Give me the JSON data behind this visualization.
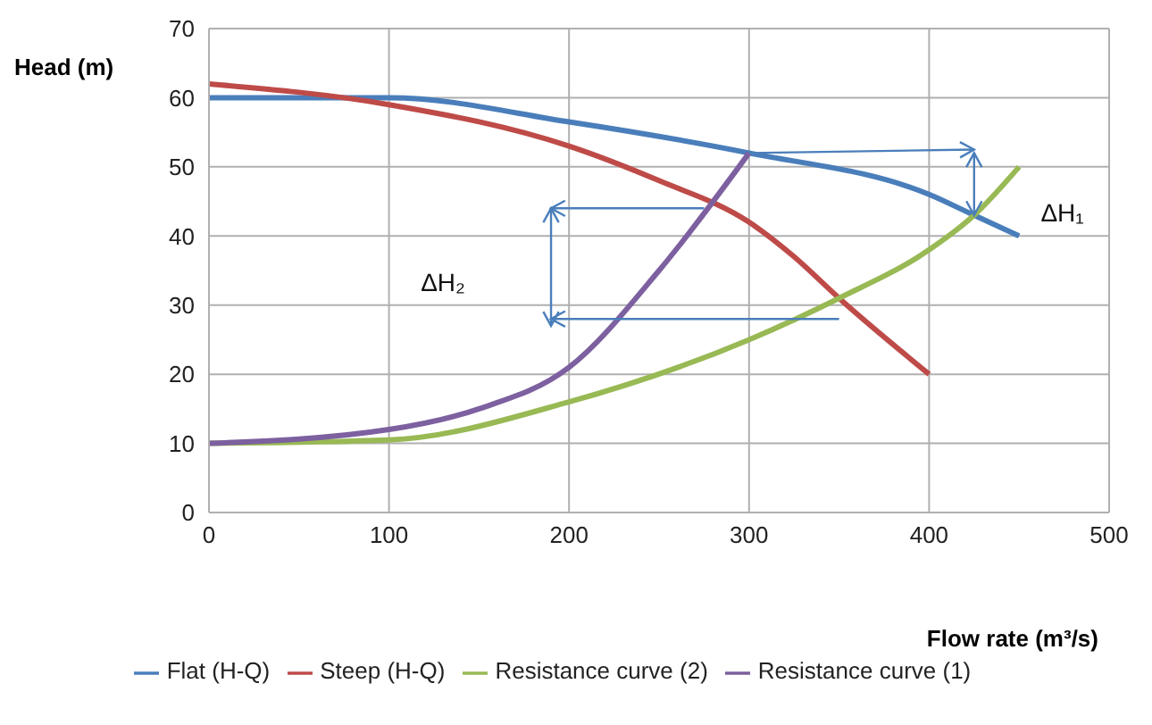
{
  "chart_data": {
    "type": "line",
    "xlabel": "Flow rate (m³/s)",
    "ylabel": "Head (m)",
    "xlim": [
      0,
      500
    ],
    "xticks": [
      0,
      100,
      200,
      300,
      400,
      500
    ],
    "ylim": [
      0,
      70
    ],
    "yticks": [
      0,
      10,
      20,
      30,
      40,
      50,
      60,
      70
    ],
    "grid": true,
    "legend": "bottom",
    "marker": "none",
    "line_style": "solid",
    "series": [
      {
        "name": "Flat (H-Q)",
        "color": "#4a7ebb",
        "x": [
          0,
          100,
          200,
          300,
          400,
          425,
          450
        ],
        "values": [
          60,
          60,
          56.5,
          52,
          46,
          43,
          40
        ]
      },
      {
        "name": "Steep (H-Q)",
        "color": "#be4b48",
        "x": [
          0,
          100,
          200,
          250,
          300,
          325,
          350,
          400
        ],
        "values": [
          62,
          59,
          53,
          48,
          42,
          37,
          31,
          20
        ]
      },
      {
        "name": "Resistance curve (2)",
        "color": "#98b954",
        "x": [
          0,
          100,
          200,
          300,
          350,
          400,
          425,
          450
        ],
        "values": [
          10,
          10.5,
          16,
          25,
          31,
          38,
          43,
          50
        ]
      },
      {
        "name": "Resistance curve (1)",
        "color": "#7d60a0",
        "x": [
          0,
          100,
          150,
          200,
          250,
          300
        ],
        "values": [
          10,
          12,
          15,
          21,
          35,
          52
        ]
      }
    ],
    "annotations": [
      "ΔH₂",
      "ΔH₁"
    ]
  }
}
